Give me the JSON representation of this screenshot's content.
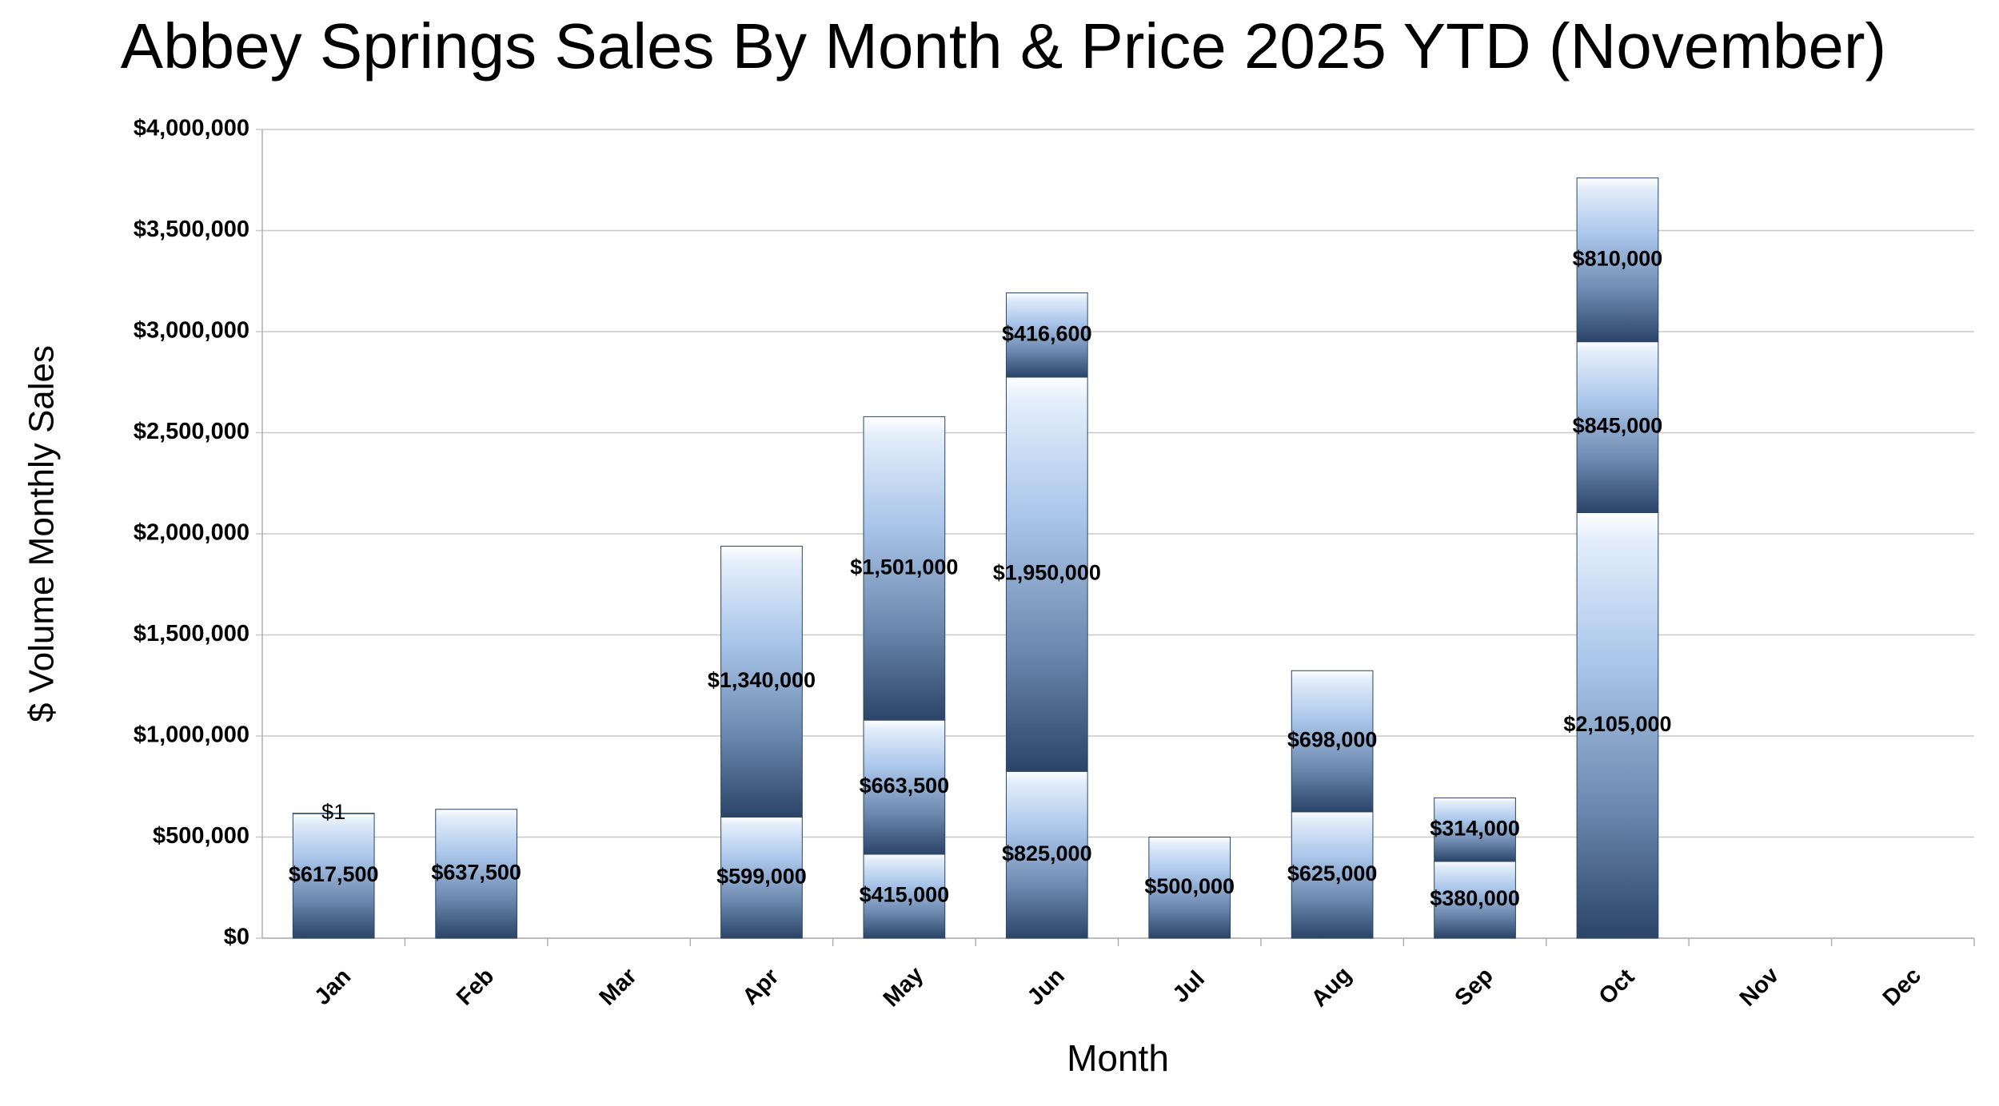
{
  "chart_data": {
    "type": "stacked-bar",
    "title": "Abbey Springs Sales By Month & Price 2025 YTD (November)",
    "y_label": "$ Volume Monthly Sales",
    "x_label": "Month",
    "categories": [
      "Jan",
      "Feb",
      "Mar",
      "Apr",
      "May",
      "Jun",
      "Jul",
      "Aug",
      "Sep",
      "Oct",
      "Nov",
      "Dec"
    ],
    "series": [
      {
        "values": [
          617500,
          637500,
          null,
          599000,
          415000,
          825000,
          500000,
          625000,
          380000,
          2105000,
          null,
          null
        ],
        "value_labels": [
          "$617,500",
          "$637,500",
          null,
          "$599,000",
          "$415,000",
          "$825,000",
          "$500,000",
          "$625,000",
          "$380,000",
          "$2,105,000",
          null,
          null
        ]
      },
      {
        "values": [
          1,
          null,
          null,
          1340000,
          663500,
          1950000,
          null,
          698000,
          314000,
          845000,
          null,
          null
        ],
        "value_labels": [
          "$1",
          null,
          null,
          "$1,340,000",
          "$663,500",
          "$1,950,000",
          null,
          "$698,000",
          "$314,000",
          "$845,000",
          null,
          null
        ]
      },
      {
        "values": [
          null,
          null,
          null,
          null,
          1501000,
          416600,
          null,
          null,
          null,
          810000,
          null,
          null
        ],
        "value_labels": [
          null,
          null,
          null,
          null,
          "$1,501,000",
          "$416,600",
          null,
          null,
          null,
          "$810,000",
          null,
          null
        ]
      }
    ],
    "color": "#2b4468",
    "ylim": [
      0,
      4000000
    ],
    "yticks": [
      {
        "value": 0,
        "label": "$0"
      },
      {
        "value": 500000,
        "label": "$500,000"
      },
      {
        "value": 1000000,
        "label": "$1,000,000"
      },
      {
        "value": 1500000,
        "label": "$1,500,000"
      },
      {
        "value": 2000000,
        "label": "$2,000,000"
      },
      {
        "value": 2500000,
        "label": "$2,500,000"
      },
      {
        "value": 3000000,
        "label": "$3,000,000"
      },
      {
        "value": 3500000,
        "label": "$3,500,000"
      },
      {
        "value": 4000000,
        "label": "$4,000,000"
      }
    ],
    "grid": true
  }
}
